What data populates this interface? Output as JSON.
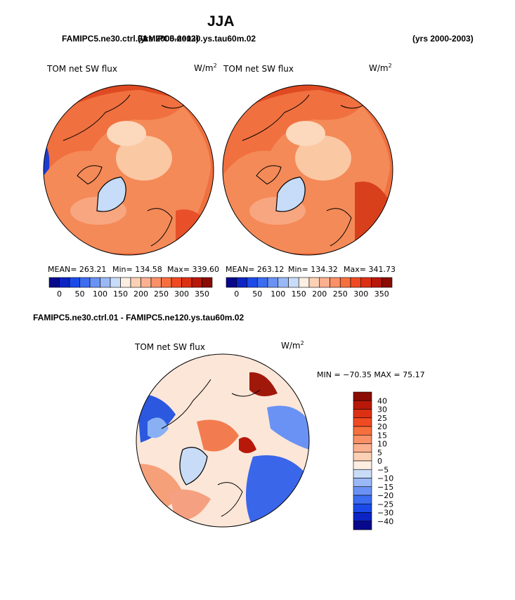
{
  "season": "JJA",
  "top_left_run": "FAMIPC5.ne30.ctrl.01",
  "top_left_years": "(yrs 2000-2003)",
  "top_right_run": "FAMIPC5.ne120.ys.tau60m.02",
  "top_right_years": "(yrs 2000-2003)",
  "diff_title": "FAMIPC5.ne30.ctrl.01 - FAMIPC5.ne120.ys.tau60m.02",
  "variable": "TOM net SW flux",
  "units_base": "W/m",
  "units_exp": "2",
  "panel_left": {
    "mean": "MEAN= 263.21",
    "min": "Min= 134.58",
    "max": "Max= 339.60"
  },
  "panel_right": {
    "mean": "MEAN= 263.12",
    "min": "Min= 134.32",
    "max": "Max= 341.73"
  },
  "diff_stats": "MIN = −70.35 MAX =  75.17",
  "abs_colorbar": {
    "colors": [
      "#08088c",
      "#0c24c4",
      "#1c4ae8",
      "#3c6cf0",
      "#6a92f4",
      "#9ab8f6",
      "#c8dcf8",
      "#fdeee2",
      "#fcd0b4",
      "#fbb090",
      "#f99068",
      "#f6703e",
      "#f04a22",
      "#dc3014",
      "#b8180a",
      "#8a0c04"
    ],
    "tick_labels": [
      "0",
      "50",
      "100",
      "150",
      "200",
      "250",
      "300",
      "350"
    ]
  },
  "diff_colorbar": {
    "colors": [
      "#8a0c04",
      "#b8180a",
      "#dc3014",
      "#f04a22",
      "#f6703e",
      "#f99068",
      "#fbb090",
      "#fcd0b4",
      "#fdeee2",
      "#c8dcf8",
      "#9ab8f6",
      "#6a92f4",
      "#3c6cf0",
      "#1c4ae8",
      "#0c24c4",
      "#08088c"
    ],
    "tick_labels": [
      "40",
      "30",
      "25",
      "20",
      "15",
      "10",
      "5",
      "0",
      "−5",
      "−10",
      "−15",
      "−20",
      "−25",
      "−30",
      "−40"
    ]
  }
}
